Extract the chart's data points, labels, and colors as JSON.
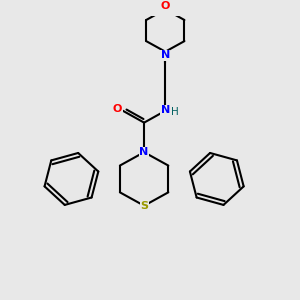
{
  "background_color": "#e8e8e8",
  "bond_color": "#000000",
  "N_color": "#0000ff",
  "O_color": "#ff0000",
  "S_color": "#999900",
  "H_color": "#006060",
  "line_width": 1.5,
  "figsize": [
    3.0,
    3.0
  ],
  "dpi": 100,
  "xlim": [
    0,
    10
  ],
  "ylim": [
    0,
    10
  ]
}
